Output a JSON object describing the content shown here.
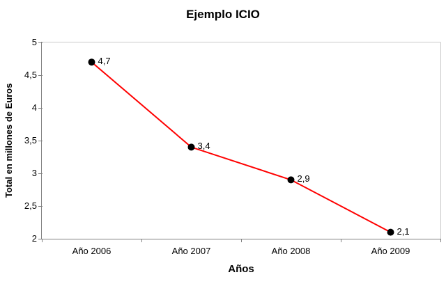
{
  "chart": {
    "title": "Ejemplo ICIO",
    "xlabel": "Años",
    "ylabel": "Total en millones de Euros"
  },
  "chart_data": {
    "type": "line",
    "title": "Ejemplo ICIO",
    "xlabel": "Años",
    "ylabel": "Total en millones de Euros",
    "categories": [
      "Año 2006",
      "Año 2007",
      "Año 2008",
      "Año 2009"
    ],
    "values": [
      4.7,
      3.4,
      2.9,
      2.1
    ],
    "point_labels": [
      "4,7",
      "3,4",
      "2,9",
      "2,1"
    ],
    "ylim": [
      2,
      5
    ],
    "ytick_values": [
      5,
      4.5,
      4,
      3.5,
      3,
      2.5,
      2
    ],
    "ytick_labels": [
      "5",
      "4,5",
      "4",
      "3,5",
      "3",
      "2,5",
      "2"
    ],
    "grid": false,
    "legend": false,
    "line_color": "#ff0000",
    "marker_color": "#000000",
    "axis_color": "#808080",
    "frame_color": "#c9c9c9",
    "text_color": "#000000"
  }
}
